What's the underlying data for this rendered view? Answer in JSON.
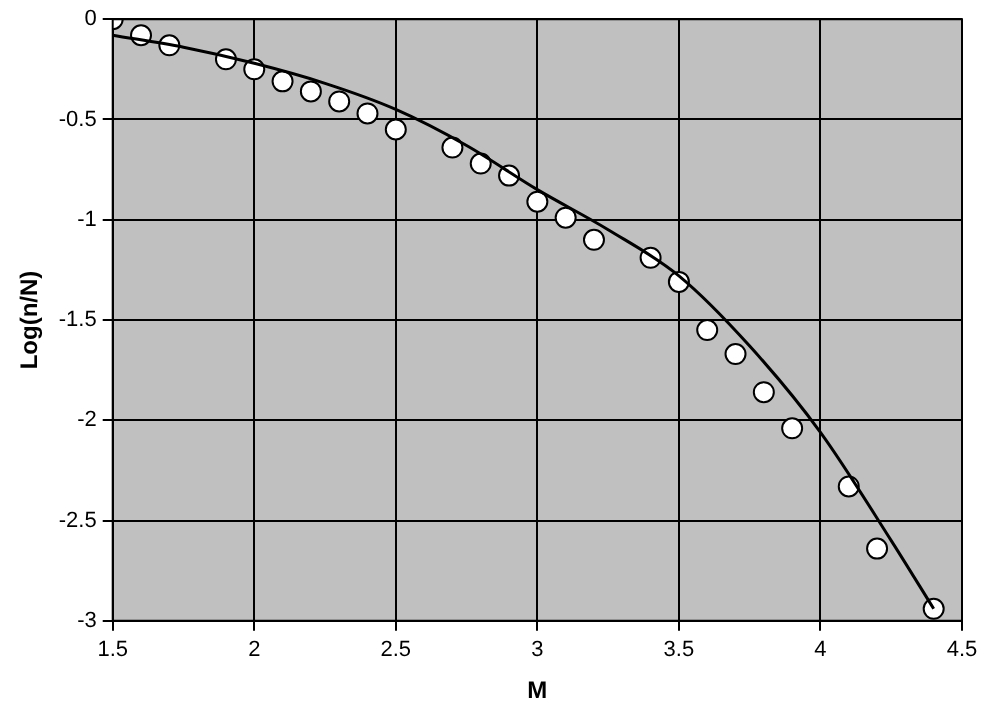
{
  "chart_data": {
    "type": "scatter",
    "xlabel": "M",
    "ylabel": "Log(n/N)",
    "xlim": [
      1.5,
      4.5
    ],
    "xticks": [
      1.5,
      2,
      2.5,
      3,
      3.5,
      4,
      4.5
    ],
    "ylim": [
      -3,
      0
    ],
    "yticks": [
      -3,
      -2.5,
      -2,
      -1.5,
      -1,
      -0.5,
      0
    ],
    "grid": true,
    "legend": false,
    "series": [
      {
        "color": "#ffffff",
        "marker": "circle",
        "x": [
          1.5,
          1.6,
          1.7,
          1.9,
          2.0,
          2.1,
          2.2,
          2.3,
          2.4,
          2.5,
          2.7,
          2.8,
          2.9,
          3.0,
          3.1,
          3.2,
          3.4,
          3.5,
          3.6,
          3.7,
          3.8,
          3.9,
          4.1,
          4.2,
          4.4
        ],
        "values": [
          0,
          -0.08,
          -0.13,
          -0.2,
          -0.25,
          -0.31,
          -0.36,
          -0.41,
          -0.47,
          -0.55,
          -0.64,
          -0.72,
          -0.78,
          -0.91,
          -0.99,
          -1.1,
          -1.19,
          -1.31,
          -1.55,
          -1.67,
          -1.86,
          -2.04,
          -2.33,
          -2.64,
          -2.94
        ]
      },
      {
        "type": "line",
        "color": "#000000",
        "marker": "none",
        "line_style": "solid",
        "x": [
          1.5,
          1.75,
          2.0,
          2.25,
          2.5,
          2.75,
          3.0,
          3.25,
          3.5,
          3.75,
          4.0,
          4.25,
          4.4
        ],
        "values": [
          -0.08,
          -0.14,
          -0.22,
          -0.32,
          -0.45,
          -0.63,
          -0.85,
          -1.05,
          -1.28,
          -1.63,
          -2.06,
          -2.6,
          -2.94
        ]
      }
    ]
  }
}
